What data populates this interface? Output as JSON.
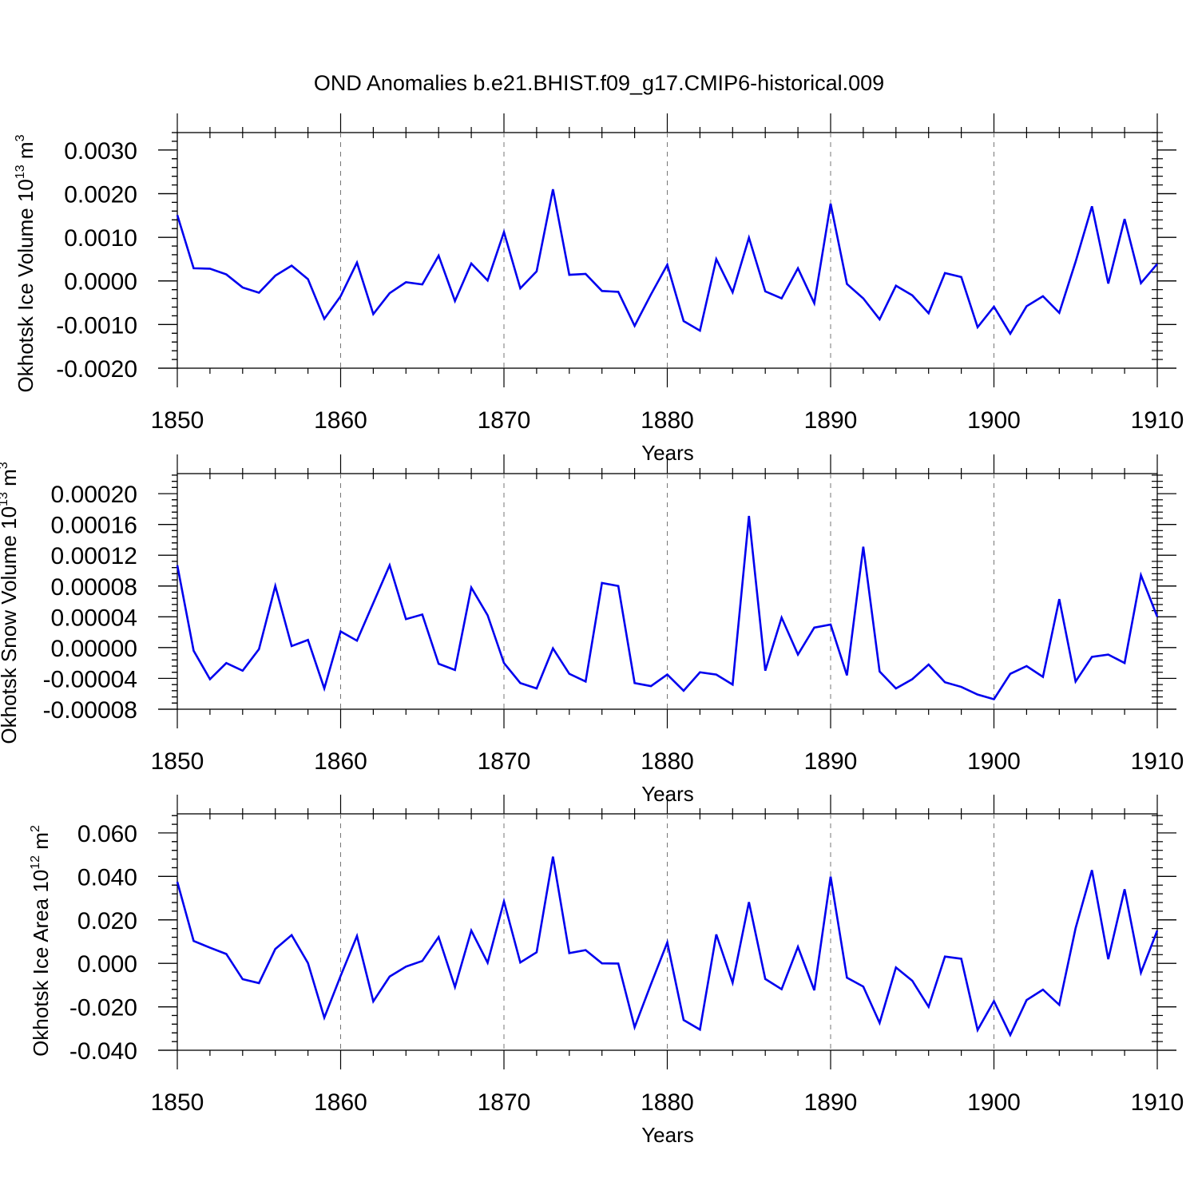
{
  "figure": {
    "title": "OND Anomalies b.e21.BHIST.f09_g17.CMIP6-historical.009"
  },
  "chart_data": [
    {
      "type": "line",
      "id": "ice-volume",
      "xlabel": "Years",
      "ylabel": "Okhotsk Ice Volume 10",
      "ylabel_exponent": "13",
      "ylabel_unit": " m",
      "ylabel_unit_exponent": "3",
      "xlim": [
        1850,
        1910
      ],
      "ylim": [
        -0.002,
        0.0034
      ],
      "x_ticks": [
        "1850",
        "1860",
        "1870",
        "1880",
        "1890",
        "1900",
        "1910"
      ],
      "y_ticks": [
        "0.0030",
        "0.0020",
        "0.0010",
        "0.0000",
        "-0.0010",
        "-0.0020"
      ],
      "y_tick_values": [
        0.003,
        0.002,
        0.001,
        0.0,
        -0.001,
        -0.002
      ],
      "grid": "vertical dashed at major x ticks",
      "color": "#0000ee",
      "x": [
        1850,
        1851,
        1852,
        1853,
        1854,
        1855,
        1856,
        1857,
        1858,
        1859,
        1860,
        1861,
        1862,
        1863,
        1864,
        1865,
        1866,
        1867,
        1868,
        1869,
        1870,
        1871,
        1872,
        1873,
        1874,
        1875,
        1876,
        1877,
        1878,
        1879,
        1880,
        1881,
        1882,
        1883,
        1884,
        1885,
        1886,
        1887,
        1888,
        1889,
        1890,
        1891,
        1892,
        1893,
        1894,
        1895,
        1896,
        1897,
        1898,
        1899,
        1900,
        1901,
        1902,
        1903,
        1904,
        1905,
        1906,
        1907,
        1908,
        1909,
        1910
      ],
      "values": [
        0.00151,
        0.00029,
        0.00028,
        0.00015,
        -0.00015,
        -0.00027,
        0.00012,
        0.00035,
        4e-05,
        -0.00087,
        -0.00035,
        0.00042,
        -0.00076,
        -0.00028,
        -3e-05,
        -8e-05,
        0.00058,
        -0.00046,
        0.0004,
        1e-05,
        0.00112,
        -0.00017,
        0.00022,
        0.0021,
        0.00014,
        0.00016,
        -0.00023,
        -0.00025,
        -0.00103,
        -0.00031,
        0.00037,
        -0.00092,
        -0.00114,
        0.0005,
        -0.00026,
        0.00099,
        -0.00024,
        -0.0004,
        0.00029,
        -0.00051,
        0.00177,
        -7e-05,
        -0.0004,
        -0.00088,
        -0.00011,
        -0.00033,
        -0.00074,
        0.00018,
        9e-05,
        -0.00106,
        -0.00059,
        -0.00121,
        -0.00058,
        -0.00035,
        -0.00073,
        0.00044,
        0.00171,
        -6e-05,
        0.00142,
        -5e-05,
        0.00039
      ]
    },
    {
      "type": "line",
      "id": "snow-volume",
      "xlabel": "Years",
      "ylabel": "Okhotsk Snow Volume 10",
      "ylabel_exponent": "13",
      "ylabel_unit": " m",
      "ylabel_unit_exponent": "3",
      "xlim": [
        1850,
        1910
      ],
      "ylim": [
        -8e-05,
        0.000226
      ],
      "x_ticks": [
        "1850",
        "1860",
        "1870",
        "1880",
        "1890",
        "1900",
        "1910"
      ],
      "y_ticks": [
        "0.00020",
        "0.00016",
        "0.00012",
        "0.00008",
        "0.00004",
        "0.00000",
        "-0.00004",
        "-0.00008"
      ],
      "y_tick_values": [
        0.0002,
        0.00016,
        0.00012,
        8e-05,
        4e-05,
        0.0,
        -4e-05,
        -8e-05
      ],
      "grid": "vertical dashed at major x ticks",
      "color": "#0000ee",
      "x": [
        1850,
        1851,
        1852,
        1853,
        1854,
        1855,
        1856,
        1857,
        1858,
        1859,
        1860,
        1861,
        1862,
        1863,
        1864,
        1865,
        1866,
        1867,
        1868,
        1869,
        1870,
        1871,
        1872,
        1873,
        1874,
        1875,
        1876,
        1877,
        1878,
        1879,
        1880,
        1881,
        1882,
        1883,
        1884,
        1885,
        1886,
        1887,
        1888,
        1889,
        1890,
        1891,
        1892,
        1893,
        1894,
        1895,
        1896,
        1897,
        1898,
        1899,
        1900,
        1901,
        1902,
        1903,
        1904,
        1905,
        1906,
        1907,
        1908,
        1909,
        1910
      ],
      "values": [
        0.000107,
        -4e-06,
        -4.1e-05,
        -2e-05,
        -3e-05,
        -2e-06,
        8e-05,
        2e-06,
        1e-05,
        -5.3e-05,
        2.1e-05,
        9e-06,
        5.8e-05,
        0.000107,
        3.7e-05,
        4.3e-05,
        -2.1e-05,
        -2.9e-05,
        7.8e-05,
        4.2e-05,
        -2e-05,
        -4.6e-05,
        -5.3e-05,
        -1e-06,
        -3.4e-05,
        -4.4e-05,
        8.4e-05,
        8e-05,
        -4.6e-05,
        -5e-05,
        -3.5e-05,
        -5.6e-05,
        -3.2e-05,
        -3.5e-05,
        -4.8e-05,
        0.000171,
        -3e-05,
        3.9e-05,
        -9e-06,
        2.6e-05,
        3e-05,
        -3.6e-05,
        0.000131,
        -3.1e-05,
        -5.3e-05,
        -4.1e-05,
        -2.2e-05,
        -4.5e-05,
        -5.1e-05,
        -6.1e-05,
        -6.7e-05,
        -3.4e-05,
        -2.4e-05,
        -3.8e-05,
        6.3e-05,
        -4.4e-05,
        -1.2e-05,
        -9e-06,
        -2e-05,
        9.4e-05,
        4e-05
      ]
    },
    {
      "type": "line",
      "id": "ice-area",
      "xlabel": "Years",
      "ylabel": "Okhotsk Ice Area 10",
      "ylabel_exponent": "12",
      "ylabel_unit": " m",
      "ylabel_unit_exponent": "2",
      "xlim": [
        1850,
        1910
      ],
      "ylim": [
        -0.04,
        0.0688
      ],
      "x_ticks": [
        "1850",
        "1860",
        "1870",
        "1880",
        "1890",
        "1900",
        "1910"
      ],
      "y_ticks": [
        "0.060",
        "0.040",
        "0.020",
        "0.000",
        "-0.020",
        "-0.040"
      ],
      "y_tick_values": [
        0.06,
        0.04,
        0.02,
        0.0,
        -0.02,
        -0.04
      ],
      "grid": "vertical dashed at major x ticks",
      "color": "#0000ee",
      "x": [
        1850,
        1851,
        1852,
        1853,
        1854,
        1855,
        1856,
        1857,
        1858,
        1859,
        1860,
        1861,
        1862,
        1863,
        1864,
        1865,
        1866,
        1867,
        1868,
        1869,
        1870,
        1871,
        1872,
        1873,
        1874,
        1875,
        1876,
        1877,
        1878,
        1879,
        1880,
        1881,
        1882,
        1883,
        1884,
        1885,
        1886,
        1887,
        1888,
        1889,
        1890,
        1891,
        1892,
        1893,
        1894,
        1895,
        1896,
        1897,
        1898,
        1899,
        1900,
        1901,
        1902,
        1903,
        1904,
        1905,
        1906,
        1907,
        1908,
        1909,
        1910
      ],
      "values": [
        0.0375,
        0.0103,
        0.0072,
        0.0043,
        -0.0073,
        -0.0091,
        0.0066,
        0.013,
        0.0001,
        -0.025,
        -0.0058,
        0.0126,
        -0.0175,
        -0.0061,
        -0.0015,
        0.0011,
        0.0121,
        -0.0109,
        0.0151,
        0.0003,
        0.0285,
        0.0004,
        0.0051,
        0.0491,
        0.0047,
        0.0061,
        0.0,
        -0.0001,
        -0.0294,
        -0.0096,
        0.0096,
        -0.0261,
        -0.0305,
        0.0133,
        -0.0089,
        0.0282,
        -0.0072,
        -0.0119,
        0.0076,
        -0.0124,
        0.0399,
        -0.0066,
        -0.0107,
        -0.0274,
        -0.0019,
        -0.008,
        -0.02,
        0.0031,
        0.0021,
        -0.0307,
        -0.0174,
        -0.033,
        -0.0169,
        -0.0121,
        -0.0191,
        0.0162,
        0.0429,
        0.0019,
        0.0341,
        -0.0043,
        0.0151
      ]
    }
  ]
}
